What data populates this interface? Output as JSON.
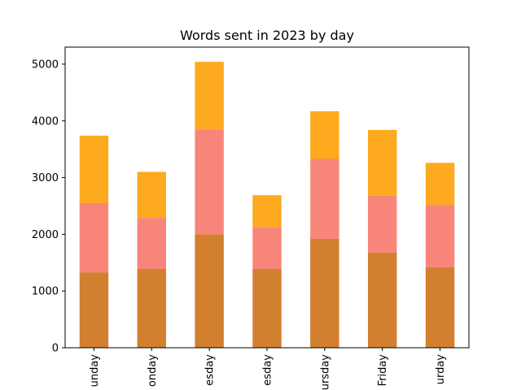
{
  "chart_data": {
    "type": "bar",
    "stacked": true,
    "title": "Words sent in 2023 by day",
    "xlabel": "",
    "ylabel": "",
    "categories": [
      "Sunday",
      "Monday",
      "Tuesday",
      "Wednesday",
      "Thursday",
      "Friday",
      "Saturday"
    ],
    "category_labels_visible": [
      "unday",
      "onday",
      "esday",
      "esday",
      "ursday",
      "Friday",
      "urday"
    ],
    "ylim": [
      0,
      5300
    ],
    "yticks": [
      0,
      1000,
      2000,
      3000,
      4000,
      5000
    ],
    "ytick_labels": [
      "0",
      "1000",
      "2000",
      "3000",
      "4000",
      "5000"
    ],
    "series": [
      {
        "values": [
          1330,
          1390,
          2000,
          1390,
          1920,
          1680,
          1420
        ],
        "color": "#d27f2f"
      },
      {
        "values": [
          1220,
          900,
          1850,
          740,
          1410,
          1000,
          1100
        ],
        "color": "#f8857a"
      },
      {
        "values": [
          1190,
          810,
          1190,
          560,
          840,
          1160,
          740
        ],
        "color": "#fdaa1f"
      }
    ],
    "grid": false,
    "legend": "none"
  }
}
